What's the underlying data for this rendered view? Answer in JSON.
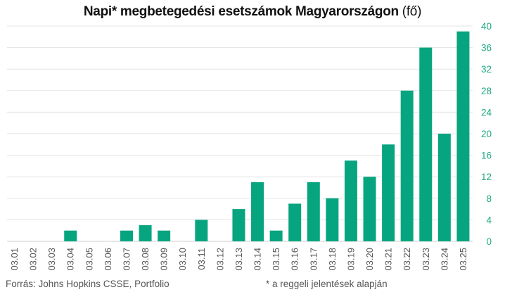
{
  "chart_data": {
    "type": "bar",
    "title": "Napi* megbetegedési esetszámok Magyarországon",
    "title_unit": "(fő)",
    "categories": [
      "03.01",
      "03.02",
      "03.03",
      "03.04",
      "03.05",
      "03.06",
      "03.07",
      "03.08",
      "03.09",
      "03.10",
      "03.11",
      "03.12",
      "03.13",
      "03.14",
      "03.15",
      "03.16",
      "03.17",
      "03.18",
      "03.19",
      "03.20",
      "03.21",
      "03.22",
      "03.23",
      "03.24",
      "03.25"
    ],
    "values": [
      0,
      0,
      0,
      2,
      0,
      0,
      2,
      3,
      2,
      0,
      4,
      0,
      6,
      11,
      2,
      7,
      11,
      8,
      15,
      12,
      18,
      28,
      36,
      20,
      39
    ],
    "y_ticks": [
      0,
      4,
      8,
      12,
      16,
      20,
      24,
      28,
      32,
      36,
      40
    ],
    "ylim": [
      0,
      40
    ],
    "y_axis_position": "right",
    "grid": true,
    "bar_color": "#07a57f",
    "tick_color": "#1fa882",
    "source": "Forrás: Johns Hopkins CSSE, Portfolio",
    "note": "* a reggeli jelentések alapján"
  }
}
